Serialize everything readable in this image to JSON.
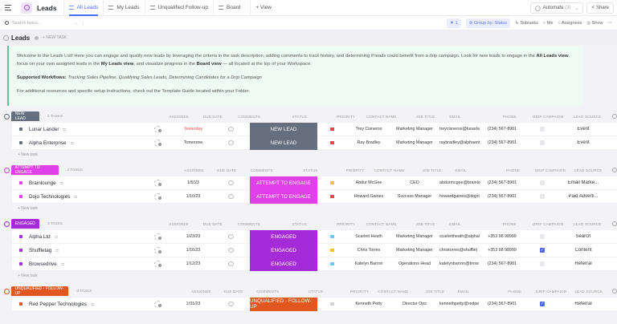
{
  "header": {
    "title": "Leads",
    "tabs": [
      {
        "label": "All Leads",
        "active": true
      },
      {
        "label": "My Leads"
      },
      {
        "label": "Unqualified Follow-up"
      },
      {
        "label": "Board"
      }
    ],
    "add_view": "+ View",
    "automate": "Automate",
    "automate_count": "(3)",
    "share": "Share"
  },
  "toolbar": {
    "search_placeholder": "Search tasks...",
    "filter_count": "1",
    "group_by": "Group by: Status",
    "subtasks": "Subtasks",
    "me": "Me",
    "assignees": "Assignees",
    "show": "Show",
    "more": "···"
  },
  "section": {
    "title": "Leads",
    "new_task": "+ NEW TASK"
  },
  "description": {
    "p1a": "Welcome to the Leads List! Here you can engage and qualify new leads by leveraging the criteria in the task description, adding comments to track history, and determining if leads could benefit from a drip campaign. Look for new leads to engage in the ",
    "p1b": "All Leads view",
    "p1c": ", focus on your own assigned leads in the ",
    "p1d": "My Leads view",
    "p1e": ", and visualize progress in the ",
    "p1f": "Board view",
    "p1g": " — all located at the top of your Workspace.",
    "p2a": "Supported Workflows: ",
    "p2b": "Tracking Sales Pipeline,  Qualifying Sales Leads, Determining Candidates for a Drip Campaign",
    "p3": "For additional resources and specific setup instructions, check out the Template Guide located within your Folder."
  },
  "columns": {
    "assignee": "ASSIGNEE",
    "due": "DUE DATE",
    "comments": "COMMENTS",
    "status": "STATUS",
    "priority": "PRIORITY",
    "contact": "CONTACT NAME",
    "job": "JOB TITLE",
    "email": "EMAIL",
    "phone": "PHONE",
    "drip": "DRIP CAMPAIGN",
    "source": "LEAD SOURCE"
  },
  "new_task_label": "+ New task",
  "groups": [
    {
      "label": "NEW LEAD",
      "count": "2 TASKS",
      "color": "#656f7d",
      "rows": [
        {
          "name": "Lunar Lander",
          "due": "Yesterday",
          "due_color": "#e5484d",
          "status": "NEW LEAD",
          "flag": "#e5484d",
          "contact": "Trey Cisneros",
          "job": "Marketing Manager",
          "email": "treycisneros@lunarla",
          "phone": "(234) 567-8901",
          "drip": false,
          "source": "Event"
        },
        {
          "name": "Alpha Enterprise",
          "due": "Tomorrow",
          "status": "NEW LEAD",
          "flag": "#e5484d",
          "contact": "Ray Bradley",
          "job": "Marketing Manager",
          "email": "raybradley@alphaent",
          "phone": "(234) 567-8901",
          "drip": false,
          "source": "Event"
        }
      ]
    },
    {
      "label": "ATTEMPT TO ENGAGE",
      "count": "2 TASKS",
      "color": "#e040e8",
      "rows": [
        {
          "name": "Brainlounge",
          "due": "1/5/23",
          "status": "ATTEMPT TO ENGAGE",
          "flag": "#f7c325",
          "contact": "Abdur McGee",
          "job": "CEO",
          "email": "abdurmcgee@brainlo",
          "phone": "(234) 567-8901",
          "drip": false,
          "source": "Email Marke..."
        },
        {
          "name": "Dojo Technologies",
          "due": "1/10/23",
          "status": "ATTEMPT TO ENGAGE",
          "flag": "#e5484d",
          "contact": "Howard Gaines",
          "job": "Success Manager",
          "email": "howardgaines@dojot",
          "phone": "(234) 567-8901",
          "drip": false,
          "source": "Paid Adverti..."
        }
      ]
    },
    {
      "label": "ENGAGED",
      "count": "3 TASKS",
      "color": "#a62bd8",
      "rows": [
        {
          "name": "Alpha Ltd",
          "due": "1/23/23",
          "status": "ENGAGED",
          "flag": "#6fc8f5",
          "contact": "Scarlett Heath",
          "job": "Marketing Manager",
          "email": "scarlettheath@alphal",
          "phone": "+353 98 98999",
          "drip": false,
          "source": "Search"
        },
        {
          "name": "Shuffletag",
          "due": "1/16/23",
          "status": "ENGAGED",
          "flag": "#f7c325",
          "contact": "Chris Torres",
          "job": "Marketing Manager",
          "email": "christorres@shufflet",
          "phone": "+353 98 98999",
          "drip": true,
          "source": "Content"
        },
        {
          "name": "Browsedrive",
          "due": "1/12/23",
          "status": "ENGAGED",
          "flag": "#6fc8f5",
          "contact": "Katelyn Barron",
          "job": "Operations Head",
          "email": "katelynbarron@brow",
          "phone": "(234) 567-8901",
          "drip": false,
          "source": "Referral"
        }
      ]
    },
    {
      "label": "UNQUALIFIED - FOLLOW-UP",
      "count": "3 TASKS",
      "color": "#e1571f",
      "rows": [
        {
          "name": "Red Pepper Technologies",
          "due": "1/31/23",
          "status": "UNQUALIFIED - FOLLOW-UP",
          "flag": "#d0d0d6",
          "contact": "Kenneth Petty",
          "job": "Director Ops",
          "email": "kennethpetty@redpe",
          "phone": "(234) 567-8901",
          "drip": true,
          "source": "Referral"
        }
      ]
    }
  ]
}
